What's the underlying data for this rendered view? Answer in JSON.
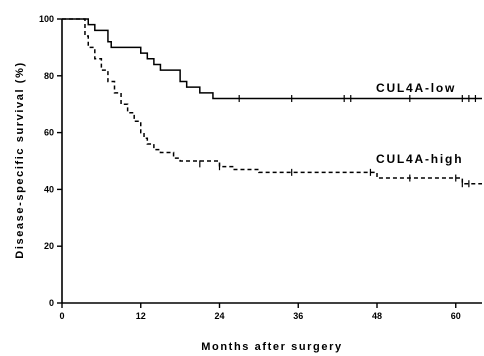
{
  "chart_data": {
    "type": "line",
    "xlabel": "Months after surgery",
    "ylabel": "Disease-specific survival (%)",
    "xlim": [
      0,
      64
    ],
    "ylim": [
      0,
      100
    ],
    "xticks": [
      0,
      12,
      24,
      36,
      48,
      60
    ],
    "yticks": [
      0,
      20,
      40,
      60,
      80,
      100
    ],
    "grid": false,
    "series": [
      {
        "name": "CUL4A-low",
        "style": "solid",
        "x": [
          0,
          4,
          5,
          7,
          7.5,
          12,
          13,
          14,
          15,
          18,
          19,
          21,
          22,
          23,
          64
        ],
        "y": [
          100,
          98,
          96,
          92,
          90,
          88,
          86,
          84,
          82,
          78,
          76,
          74,
          74,
          72,
          72
        ],
        "censored": [
          [
            27,
            72
          ],
          [
            35,
            72
          ],
          [
            43,
            72
          ],
          [
            44,
            72
          ],
          [
            53,
            72
          ],
          [
            61,
            72
          ],
          [
            62,
            72
          ],
          [
            63,
            72
          ]
        ]
      },
      {
        "name": "CUL4A-high",
        "style": "dashed",
        "x": [
          0,
          3.5,
          4,
          5,
          6,
          7,
          8,
          9,
          10,
          11,
          12,
          12.5,
          13,
          14,
          15,
          17,
          18,
          24,
          26,
          30,
          48,
          61,
          62,
          64
        ],
        "y": [
          100,
          94,
          90,
          86,
          82,
          78,
          74,
          70,
          67,
          64,
          60,
          58,
          56,
          54,
          53,
          51,
          50,
          48,
          47,
          46,
          44,
          42,
          42,
          42
        ],
        "censored": [
          [
            21,
            49
          ],
          [
            24,
            48
          ],
          [
            35,
            46
          ],
          [
            47,
            46
          ],
          [
            53,
            44
          ],
          [
            60,
            44
          ],
          [
            61,
            42
          ],
          [
            62,
            42
          ]
        ]
      }
    ]
  }
}
